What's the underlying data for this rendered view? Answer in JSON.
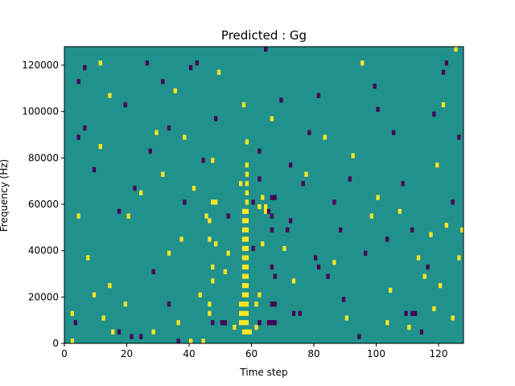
{
  "chart_data": {
    "type": "heatmap",
    "title": "Predicted : Gg",
    "xlabel": "Time step",
    "ylabel": "Frequency (Hz)",
    "xlim": [
      0,
      128
    ],
    "ylim": [
      0,
      128000
    ],
    "x_ticks": [
      {
        "value": 0,
        "label": "0"
      },
      {
        "value": 20,
        "label": "20"
      },
      {
        "value": 40,
        "label": "40"
      },
      {
        "value": 60,
        "label": "60"
      },
      {
        "value": 80,
        "label": "80"
      },
      {
        "value": 100,
        "label": "100"
      },
      {
        "value": 120,
        "label": "120"
      }
    ],
    "y_ticks": [
      {
        "value": 0,
        "label": "0"
      },
      {
        "value": 20000,
        "label": "20000"
      },
      {
        "value": 40000,
        "label": "40000"
      },
      {
        "value": 60000,
        "label": "60000"
      },
      {
        "value": 80000,
        "label": "80000"
      },
      {
        "value": 100000,
        "label": "100000"
      },
      {
        "value": 120000,
        "label": "120000"
      }
    ],
    "grid": false,
    "colormap": "viridis",
    "colors": {
      "low": "#440154",
      "mid": "#21918c",
      "high": "#fde725"
    },
    "background_level": 0,
    "rows": 64,
    "cols": 128,
    "cell_height_hz": 2000,
    "cells": [
      {
        "x": 57,
        "y": 5000,
        "v": 1
      },
      {
        "x": 58,
        "y": 5000,
        "v": 1
      },
      {
        "x": 59,
        "y": 5000,
        "v": 1
      },
      {
        "x": 56,
        "y": 9000,
        "v": 1
      },
      {
        "x": 57,
        "y": 9000,
        "v": 1
      },
      {
        "x": 58,
        "y": 9000,
        "v": 1
      },
      {
        "x": 56,
        "y": 13000,
        "v": 1
      },
      {
        "x": 57,
        "y": 13000,
        "v": 1
      },
      {
        "x": 58,
        "y": 13000,
        "v": 1
      },
      {
        "x": 56,
        "y": 17000,
        "v": 1
      },
      {
        "x": 57,
        "y": 17000,
        "v": 1
      },
      {
        "x": 58,
        "y": 17000,
        "v": 1
      },
      {
        "x": 57,
        "y": 21000,
        "v": 1
      },
      {
        "x": 58,
        "y": 21000,
        "v": 1
      },
      {
        "x": 57,
        "y": 25000,
        "v": 1
      },
      {
        "x": 58,
        "y": 25000,
        "v": 1
      },
      {
        "x": 57,
        "y": 29000,
        "v": 1
      },
      {
        "x": 58,
        "y": 29000,
        "v": 1
      },
      {
        "x": 57,
        "y": 33000,
        "v": 1
      },
      {
        "x": 58,
        "y": 33000,
        "v": 1
      },
      {
        "x": 57,
        "y": 37000,
        "v": 1
      },
      {
        "x": 58,
        "y": 37000,
        "v": 1
      },
      {
        "x": 57,
        "y": 41000,
        "v": 1
      },
      {
        "x": 58,
        "y": 41000,
        "v": 1
      },
      {
        "x": 57,
        "y": 45000,
        "v": 1
      },
      {
        "x": 58,
        "y": 45000,
        "v": 1
      },
      {
        "x": 57,
        "y": 49000,
        "v": 1
      },
      {
        "x": 58,
        "y": 49000,
        "v": 1
      },
      {
        "x": 57,
        "y": 53000,
        "v": 1
      },
      {
        "x": 58,
        "y": 53000,
        "v": 1
      },
      {
        "x": 57,
        "y": 57000,
        "v": 1
      },
      {
        "x": 58,
        "y": 57000,
        "v": 1
      },
      {
        "x": 58,
        "y": 61000,
        "v": 1
      },
      {
        "x": 58,
        "y": 65000,
        "v": 1
      },
      {
        "x": 58,
        "y": 69000,
        "v": 1
      },
      {
        "x": 58,
        "y": 73000,
        "v": 1
      },
      {
        "x": 58,
        "y": 77000,
        "v": 1
      },
      {
        "x": 58,
        "y": 87000,
        "v": 1
      },
      {
        "x": 57,
        "y": 103000,
        "v": 1
      },
      {
        "x": 61,
        "y": 7000,
        "v": 1
      },
      {
        "x": 61,
        "y": 17000,
        "v": 1
      },
      {
        "x": 62,
        "y": 21000,
        "v": 1
      },
      {
        "x": 62,
        "y": 59000,
        "v": 1
      },
      {
        "x": 63,
        "y": 63000,
        "v": 1
      },
      {
        "x": 64,
        "y": 59000,
        "v": 1
      },
      {
        "x": 64,
        "y": 57000,
        "v": 1
      },
      {
        "x": 47,
        "y": 61000,
        "v": 1
      },
      {
        "x": 48,
        "y": 61000,
        "v": 1
      },
      {
        "x": 45,
        "y": 55000,
        "v": 1
      },
      {
        "x": 46,
        "y": 53000,
        "v": 1
      },
      {
        "x": 46,
        "y": 45000,
        "v": 1
      },
      {
        "x": 47,
        "y": 33000,
        "v": 1
      },
      {
        "x": 47,
        "y": 27000,
        "v": 1
      },
      {
        "x": 46,
        "y": 17000,
        "v": 1
      },
      {
        "x": 46,
        "y": 13000,
        "v": 1
      },
      {
        "x": 44,
        "y": 1000,
        "v": 1
      },
      {
        "x": 48,
        "y": 43000,
        "v": 1
      },
      {
        "x": 52,
        "y": 39000,
        "v": 1
      },
      {
        "x": 33,
        "y": 39000,
        "v": 1
      },
      {
        "x": 37,
        "y": 45000,
        "v": 1
      },
      {
        "x": 2,
        "y": 13000,
        "v": 1
      },
      {
        "x": 2,
        "y": 1000,
        "v": 1
      },
      {
        "x": 4,
        "y": 55000,
        "v": 1
      },
      {
        "x": 7,
        "y": 37000,
        "v": 1
      },
      {
        "x": 9,
        "y": 21000,
        "v": 1
      },
      {
        "x": 12,
        "y": 11000,
        "v": 1
      },
      {
        "x": 15,
        "y": 5000,
        "v": 1
      },
      {
        "x": 14,
        "y": 25000,
        "v": 1
      },
      {
        "x": 11,
        "y": 85000,
        "v": 1
      },
      {
        "x": 11,
        "y": 121000,
        "v": 1
      },
      {
        "x": 14,
        "y": 107000,
        "v": 1
      },
      {
        "x": 20,
        "y": 55000,
        "v": 1
      },
      {
        "x": 19,
        "y": 17000,
        "v": 1
      },
      {
        "x": 24,
        "y": 65000,
        "v": 1
      },
      {
        "x": 28,
        "y": 5000,
        "v": 1
      },
      {
        "x": 29,
        "y": 91000,
        "v": 1
      },
      {
        "x": 31,
        "y": 73000,
        "v": 1
      },
      {
        "x": 35,
        "y": 109000,
        "v": 1
      },
      {
        "x": 36,
        "y": 9000,
        "v": 1
      },
      {
        "x": 38,
        "y": 89000,
        "v": 1
      },
      {
        "x": 40,
        "y": 1000,
        "v": 1
      },
      {
        "x": 41,
        "y": 67000,
        "v": 1
      },
      {
        "x": 43,
        "y": 21000,
        "v": 1
      },
      {
        "x": 47,
        "y": 79000,
        "v": 1
      },
      {
        "x": 49,
        "y": 117000,
        "v": 1
      },
      {
        "x": 51,
        "y": 31000,
        "v": 1
      },
      {
        "x": 54,
        "y": 7000,
        "v": 1
      },
      {
        "x": 56,
        "y": 69000,
        "v": 1
      },
      {
        "x": 63,
        "y": 43000,
        "v": 1
      },
      {
        "x": 66,
        "y": 97000,
        "v": 1
      },
      {
        "x": 70,
        "y": 41000,
        "v": 1
      },
      {
        "x": 73,
        "y": 27000,
        "v": 1
      },
      {
        "x": 77,
        "y": 73000,
        "v": 1
      },
      {
        "x": 83,
        "y": 89000,
        "v": 1
      },
      {
        "x": 86,
        "y": 35000,
        "v": 1
      },
      {
        "x": 90,
        "y": 11000,
        "v": 1
      },
      {
        "x": 92,
        "y": 81000,
        "v": 1
      },
      {
        "x": 95,
        "y": 121000,
        "v": 1
      },
      {
        "x": 98,
        "y": 55000,
        "v": 1
      },
      {
        "x": 100,
        "y": 63000,
        "v": 1
      },
      {
        "x": 104,
        "y": 23000,
        "v": 1
      },
      {
        "x": 107,
        "y": 57000,
        "v": 1
      },
      {
        "x": 110,
        "y": 7000,
        "v": 1
      },
      {
        "x": 115,
        "y": 29000,
        "v": 1
      },
      {
        "x": 117,
        "y": 47000,
        "v": 1
      },
      {
        "x": 118,
        "y": 15000,
        "v": 1
      },
      {
        "x": 119,
        "y": 77000,
        "v": 1
      },
      {
        "x": 120,
        "y": 25000,
        "v": 1
      },
      {
        "x": 121,
        "y": 103000,
        "v": 1
      },
      {
        "x": 122,
        "y": 51000,
        "v": 1
      },
      {
        "x": 124,
        "y": 11000,
        "v": 1
      },
      {
        "x": 125,
        "y": 127000,
        "v": 1
      },
      {
        "x": 126,
        "y": 37000,
        "v": 1
      },
      {
        "x": 127,
        "y": 49000,
        "v": 1
      },
      {
        "x": 103,
        "y": 9000,
        "v": 1
      },
      {
        "x": 113,
        "y": 37000,
        "v": 1
      },
      {
        "x": 47,
        "y": 9000,
        "v": -1
      },
      {
        "x": 50,
        "y": 9000,
        "v": -1
      },
      {
        "x": 51,
        "y": 9000,
        "v": -1
      },
      {
        "x": 62,
        "y": 9000,
        "v": -1
      },
      {
        "x": 65,
        "y": 9000,
        "v": -1
      },
      {
        "x": 66,
        "y": 9000,
        "v": -1
      },
      {
        "x": 67,
        "y": 9000,
        "v": -1
      },
      {
        "x": 66,
        "y": 17000,
        "v": -1
      },
      {
        "x": 67,
        "y": 17000,
        "v": -1
      },
      {
        "x": 66,
        "y": 63000,
        "v": -1
      },
      {
        "x": 67,
        "y": 63000,
        "v": -1
      },
      {
        "x": 65,
        "y": 57000,
        "v": -1
      },
      {
        "x": 66,
        "y": 55000,
        "v": -1
      },
      {
        "x": 66,
        "y": 49000,
        "v": -1
      },
      {
        "x": 66,
        "y": 33000,
        "v": -1
      },
      {
        "x": 67,
        "y": 29000,
        "v": -1
      },
      {
        "x": 71,
        "y": 49000,
        "v": -1
      },
      {
        "x": 72,
        "y": 53000,
        "v": -1
      },
      {
        "x": 73,
        "y": 13000,
        "v": -1
      },
      {
        "x": 75,
        "y": 13000,
        "v": -1
      },
      {
        "x": 80,
        "y": 37000,
        "v": -1
      },
      {
        "x": 81,
        "y": 33000,
        "v": -1
      },
      {
        "x": 84,
        "y": 29000,
        "v": -1
      },
      {
        "x": 109,
        "y": 13000,
        "v": -1
      },
      {
        "x": 111,
        "y": 13000,
        "v": -1
      },
      {
        "x": 112,
        "y": 13000,
        "v": -1
      },
      {
        "x": 36,
        "y": 1000,
        "v": -1
      },
      {
        "x": 24,
        "y": 3000,
        "v": -1
      },
      {
        "x": 17,
        "y": 5000,
        "v": -1
      },
      {
        "x": 3,
        "y": 9000,
        "v": -1
      },
      {
        "x": 9,
        "y": 75000,
        "v": -1
      },
      {
        "x": 4,
        "y": 89000,
        "v": -1
      },
      {
        "x": 6,
        "y": 93000,
        "v": -1
      },
      {
        "x": 4,
        "y": 113000,
        "v": -1
      },
      {
        "x": 6,
        "y": 119000,
        "v": -1
      },
      {
        "x": 19,
        "y": 103000,
        "v": -1
      },
      {
        "x": 26,
        "y": 121000,
        "v": -1
      },
      {
        "x": 31,
        "y": 113000,
        "v": -1
      },
      {
        "x": 40,
        "y": 119000,
        "v": -1
      },
      {
        "x": 42,
        "y": 121000,
        "v": -1
      },
      {
        "x": 33,
        "y": 93000,
        "v": -1
      },
      {
        "x": 27,
        "y": 83000,
        "v": -1
      },
      {
        "x": 22,
        "y": 67000,
        "v": -1
      },
      {
        "x": 17,
        "y": 57000,
        "v": -1
      },
      {
        "x": 28,
        "y": 31000,
        "v": -1
      },
      {
        "x": 33,
        "y": 17000,
        "v": -1
      },
      {
        "x": 21,
        "y": 3000,
        "v": -1
      },
      {
        "x": 38,
        "y": 61000,
        "v": -1
      },
      {
        "x": 44,
        "y": 79000,
        "v": -1
      },
      {
        "x": 48,
        "y": 97000,
        "v": -1
      },
      {
        "x": 62,
        "y": 83000,
        "v": -1
      },
      {
        "x": 62,
        "y": 71000,
        "v": -1
      },
      {
        "x": 60,
        "y": 41000,
        "v": -1
      },
      {
        "x": 60,
        "y": 61000,
        "v": -1
      },
      {
        "x": 52,
        "y": 55000,
        "v": -1
      },
      {
        "x": 64,
        "y": 127000,
        "v": -1
      },
      {
        "x": 69,
        "y": 105000,
        "v": -1
      },
      {
        "x": 72,
        "y": 77000,
        "v": -1
      },
      {
        "x": 76,
        "y": 69000,
        "v": -1
      },
      {
        "x": 78,
        "y": 91000,
        "v": -1
      },
      {
        "x": 81,
        "y": 107000,
        "v": -1
      },
      {
        "x": 86,
        "y": 61000,
        "v": -1
      },
      {
        "x": 88,
        "y": 49000,
        "v": -1
      },
      {
        "x": 89,
        "y": 19000,
        "v": -1
      },
      {
        "x": 91,
        "y": 71000,
        "v": -1
      },
      {
        "x": 94,
        "y": 3000,
        "v": -1
      },
      {
        "x": 96,
        "y": 39000,
        "v": -1
      },
      {
        "x": 99,
        "y": 111000,
        "v": -1
      },
      {
        "x": 100,
        "y": 101000,
        "v": -1
      },
      {
        "x": 103,
        "y": 45000,
        "v": -1
      },
      {
        "x": 105,
        "y": 91000,
        "v": -1
      },
      {
        "x": 108,
        "y": 69000,
        "v": -1
      },
      {
        "x": 111,
        "y": 49000,
        "v": -1
      },
      {
        "x": 114,
        "y": 5000,
        "v": -1
      },
      {
        "x": 116,
        "y": 33000,
        "v": -1
      },
      {
        "x": 118,
        "y": 99000,
        "v": -1
      },
      {
        "x": 121,
        "y": 117000,
        "v": -1
      },
      {
        "x": 122,
        "y": 121000,
        "v": -1
      },
      {
        "x": 124,
        "y": 61000,
        "v": -1
      },
      {
        "x": 126,
        "y": 89000,
        "v": -1
      }
    ]
  }
}
